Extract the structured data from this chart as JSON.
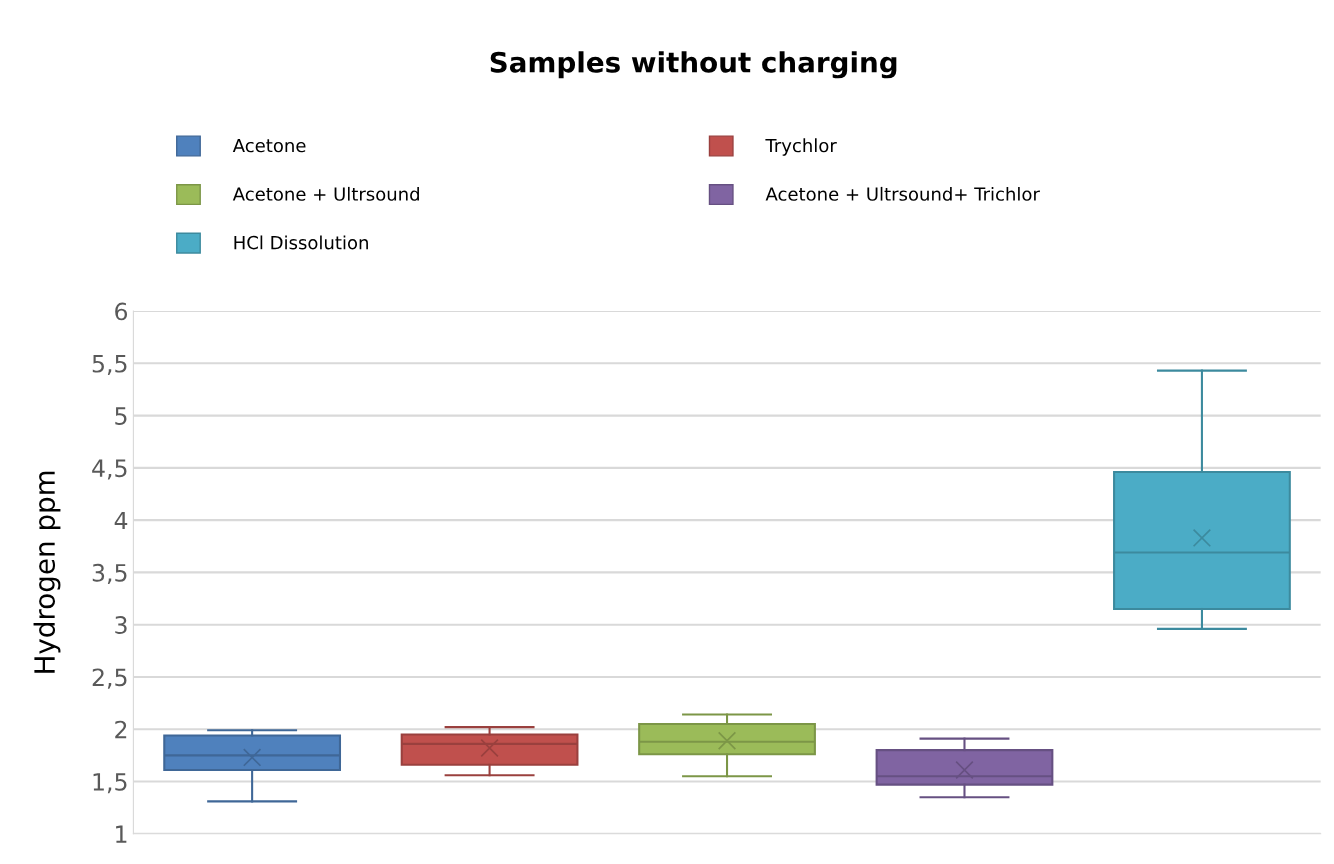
{
  "chart_data": {
    "type": "box",
    "title": "Samples without charging",
    "ylabel": "Hydrogen ppm",
    "categories": [
      null,
      null,
      null,
      null,
      null
    ],
    "series": [
      {
        "name": "Acetone",
        "color": "#4f81bd",
        "boxes": [
          {
            "low": 1.31,
            "q1": 1.61,
            "median": 1.75,
            "q3": 1.94,
            "high": 1.99,
            "mean": 1.73
          },
          null,
          null,
          null,
          null
        ]
      },
      {
        "name": "Trychlor",
        "color": "#c0504d",
        "boxes": [
          null,
          {
            "low": 1.56,
            "q1": 1.66,
            "median": 1.86,
            "q3": 1.95,
            "high": 2.02,
            "mean": 1.82
          },
          null,
          null,
          null
        ]
      },
      {
        "name": "Acetone + Ultrsound",
        "color": "#9bbb59",
        "boxes": [
          null,
          null,
          {
            "low": 1.55,
            "q1": 1.76,
            "median": 1.88,
            "q3": 2.05,
            "high": 2.14,
            "mean": 1.89
          },
          null,
          null
        ]
      },
      {
        "name": "Acetone + Ultrsound+ Trichlor",
        "color": "#8064a2",
        "boxes": [
          null,
          null,
          null,
          {
            "low": 1.35,
            "q1": 1.47,
            "median": 1.55,
            "q3": 1.8,
            "high": 1.91,
            "mean": 1.61
          },
          null
        ]
      },
      {
        "name": "HCl Dissolution",
        "color": "#4bacc6",
        "boxes": [
          null,
          null,
          null,
          null,
          {
            "low": 2.96,
            "q1": 3.15,
            "median": 3.69,
            "q3": 4.46,
            "high": 5.43,
            "mean": 3.83
          }
        ]
      }
    ],
    "ylim": [
      1,
      6
    ],
    "yticks": [
      1,
      {
        "value": 1.5,
        "label": "1,5"
      },
      2,
      {
        "value": 2.5,
        "label": "2,5"
      },
      3,
      {
        "value": 3.5,
        "label": "3,5"
      },
      4,
      {
        "value": 4.5,
        "label": "4,5"
      },
      5,
      {
        "value": 5.5,
        "label": "5,5"
      },
      6
    ],
    "grid": "y",
    "legend": "top",
    "tick_labels": "y"
  }
}
